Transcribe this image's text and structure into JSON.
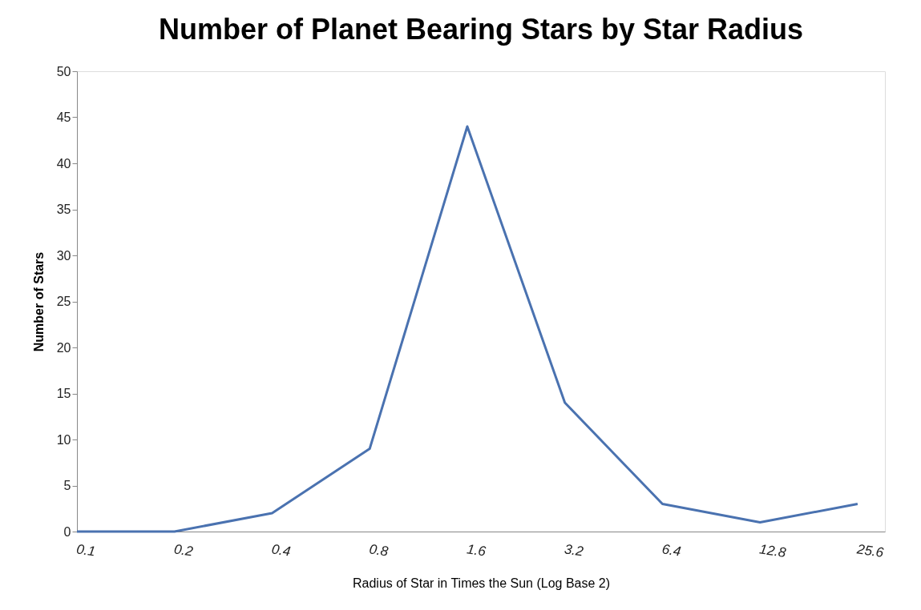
{
  "chart_data": {
    "type": "line",
    "title": "Number of Planet Bearing Stars by Star Radius",
    "xlabel": "Radius of Star in Times the Sun (Log Base 2)",
    "ylabel": "Number of Stars",
    "categories": [
      "0.1",
      "0.2",
      "0.4",
      "0.8",
      "1.6",
      "3.2",
      "6.4",
      "12.8",
      "25.6"
    ],
    "series": [
      {
        "color": "#4a72b0",
        "values": [
          0,
          0,
          2,
          9,
          44,
          14,
          3,
          1,
          3
        ]
      }
    ],
    "ylim": [
      0,
      50
    ],
    "yticks": [
      0,
      5,
      10,
      15,
      20,
      25,
      30,
      35,
      40,
      45,
      50
    ],
    "grid": false,
    "marker": "none",
    "line_style": "solid"
  }
}
